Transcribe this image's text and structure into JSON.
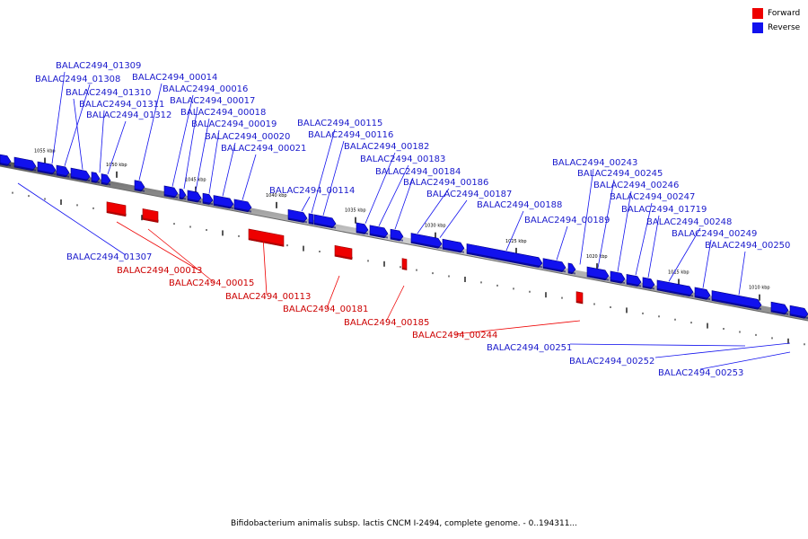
{
  "legend": {
    "forward_label": "Forward",
    "reverse_label": "Reverse",
    "forward_color": "#ee0000",
    "reverse_color": "#1111ee"
  },
  "caption": "Bifidobacterium animalis subsp. lactis CNCM I-2494, complete genome. - 0..194311...",
  "scale_labels": [
    "1055 kbp",
    "1050 kbp",
    "1045 kbp",
    "1040 kbp",
    "1035 kbp",
    "1030 kbp",
    "1025 kbp",
    "1020 kbp",
    "1015 kbp",
    "1010 kbp"
  ],
  "labels": [
    {
      "text": "BALAC2494_01309",
      "strand": "reverse"
    },
    {
      "text": "BALAC2494_01308",
      "strand": "reverse"
    },
    {
      "text": "BALAC2494_01310",
      "strand": "reverse"
    },
    {
      "text": "BALAC2494_01311",
      "strand": "reverse"
    },
    {
      "text": "BALAC2494_01312",
      "strand": "reverse"
    },
    {
      "text": "BALAC2494_00014",
      "strand": "reverse"
    },
    {
      "text": "BALAC2494_00016",
      "strand": "reverse"
    },
    {
      "text": "BALAC2494_00017",
      "strand": "reverse"
    },
    {
      "text": "BALAC2494_00018",
      "strand": "reverse"
    },
    {
      "text": "BALAC2494_00019",
      "strand": "reverse"
    },
    {
      "text": "BALAC2494_00020",
      "strand": "reverse"
    },
    {
      "text": "BALAC2494_00021",
      "strand": "reverse"
    },
    {
      "text": "BALAC2494_00115",
      "strand": "reverse"
    },
    {
      "text": "BALAC2494_00116",
      "strand": "reverse"
    },
    {
      "text": "BALAC2494_00114",
      "strand": "reverse"
    },
    {
      "text": "BALAC2494_00182",
      "strand": "reverse"
    },
    {
      "text": "BALAC2494_00183",
      "strand": "reverse"
    },
    {
      "text": "BALAC2494_00184",
      "strand": "reverse"
    },
    {
      "text": "BALAC2494_00186",
      "strand": "reverse"
    },
    {
      "text": "BALAC2494_00187",
      "strand": "reverse"
    },
    {
      "text": "BALAC2494_00188",
      "strand": "reverse"
    },
    {
      "text": "BALAC2494_00243",
      "strand": "reverse"
    },
    {
      "text": "BALAC2494_00245",
      "strand": "reverse"
    },
    {
      "text": "BALAC2494_00246",
      "strand": "reverse"
    },
    {
      "text": "BALAC2494_00189",
      "strand": "reverse"
    },
    {
      "text": "BALAC2494_00247",
      "strand": "reverse"
    },
    {
      "text": "BALAC2494_01719",
      "strand": "reverse"
    },
    {
      "text": "BALAC2494_00248",
      "strand": "reverse"
    },
    {
      "text": "BALAC2494_00249",
      "strand": "reverse"
    },
    {
      "text": "BALAC2494_00250",
      "strand": "reverse"
    },
    {
      "text": "BALAC2494_01307",
      "strand": "reverse"
    },
    {
      "text": "BALAC2494_00013",
      "strand": "forward"
    },
    {
      "text": "BALAC2494_00015",
      "strand": "forward"
    },
    {
      "text": "BALAC2494_00113",
      "strand": "forward"
    },
    {
      "text": "BALAC2494_00181",
      "strand": "forward"
    },
    {
      "text": "BALAC2494_00185",
      "strand": "forward"
    },
    {
      "text": "BALAC2494_00244",
      "strand": "forward"
    },
    {
      "text": "BALAC2494_00251",
      "strand": "reverse"
    },
    {
      "text": "BALAC2494_00252",
      "strand": "reverse"
    },
    {
      "text": "BALAC2494_00253",
      "strand": "reverse"
    }
  ]
}
